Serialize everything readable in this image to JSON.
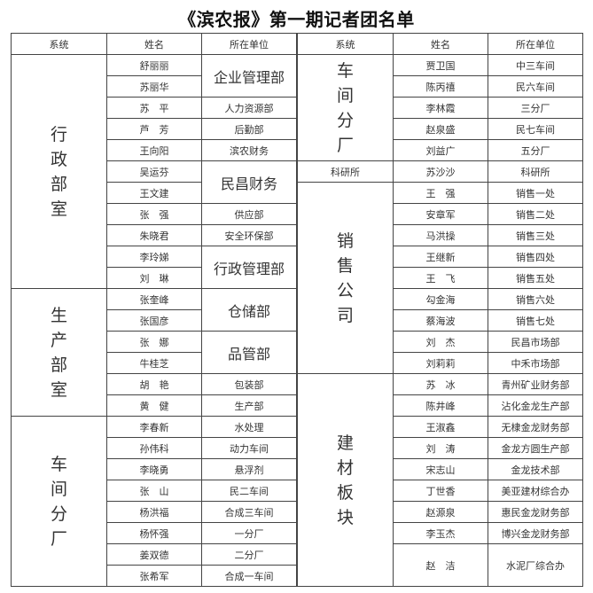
{
  "title": "《滨农报》第一期记者团名单",
  "header": [
    "系统",
    "姓名",
    "所在单位"
  ],
  "left": [
    {
      "system": "行政部室",
      "units": [
        {
          "unit": "企业管理部",
          "names": [
            "舒丽丽",
            "苏丽华"
          ]
        },
        {
          "unit": "人力资源部",
          "names": [
            "苏　平"
          ]
        },
        {
          "unit": "后勤部",
          "names": [
            "芦　芳"
          ]
        },
        {
          "unit": "滨农财务",
          "names": [
            "王向阳"
          ]
        },
        {
          "unit": "民昌财务",
          "names": [
            "吴运芬",
            "王文建"
          ]
        },
        {
          "unit": "供应部",
          "names": [
            "张　强"
          ]
        },
        {
          "unit": "安全环保部",
          "names": [
            "朱晓君"
          ]
        },
        {
          "unit": "行政管理部",
          "names": [
            "李玲娣",
            "刘　琳"
          ]
        }
      ]
    },
    {
      "system": "生产部室",
      "units": [
        {
          "unit": "仓储部",
          "names": [
            "张奎峰",
            "张国彦"
          ]
        },
        {
          "unit": "品管部",
          "names": [
            "张　娜",
            "牛桂芝"
          ]
        },
        {
          "unit": "包装部",
          "names": [
            "胡　艳"
          ]
        },
        {
          "unit": "生产部",
          "names": [
            "黄　健"
          ]
        }
      ]
    },
    {
      "system": "车间分厂",
      "units": [
        {
          "unit": "水处理",
          "names": [
            "李春新"
          ]
        },
        {
          "unit": "动力车间",
          "names": [
            "孙伟科"
          ]
        },
        {
          "unit": "悬浮剂",
          "names": [
            "李晓勇"
          ]
        },
        {
          "unit": "民二车间",
          "names": [
            "张　山"
          ]
        },
        {
          "unit": "合成三车间",
          "names": [
            "杨洪福"
          ]
        },
        {
          "unit": "一分厂",
          "names": [
            "杨怀强"
          ]
        },
        {
          "unit": "二分厂",
          "names": [
            "姜双德"
          ]
        },
        {
          "unit": "合成一车间",
          "names": [
            "张希军"
          ]
        }
      ]
    }
  ],
  "right": [
    {
      "system": "车间分厂",
      "units": [
        {
          "unit": "中三车间",
          "names": [
            "贾卫国"
          ]
        },
        {
          "unit": "民六车间",
          "names": [
            "陈丙禧"
          ]
        },
        {
          "unit": "三分厂",
          "names": [
            "李林霞"
          ]
        },
        {
          "unit": "民七车间",
          "names": [
            "赵泉盛"
          ]
        },
        {
          "unit": "五分厂",
          "names": [
            "刘益广"
          ]
        }
      ]
    },
    {
      "system": "科研所",
      "units": [
        {
          "unit": "科研所",
          "names": [
            "苏沙沙"
          ]
        }
      ]
    },
    {
      "system": "销售公司",
      "units": [
        {
          "unit": "销售一处",
          "names": [
            "王　强"
          ]
        },
        {
          "unit": "销售二处",
          "names": [
            "安章军"
          ]
        },
        {
          "unit": "销售三处",
          "names": [
            "马洪操"
          ]
        },
        {
          "unit": "销售四处",
          "names": [
            "王继新"
          ]
        },
        {
          "unit": "销售五处",
          "names": [
            "王　飞"
          ]
        },
        {
          "unit": "销售六处",
          "names": [
            "勾金海"
          ]
        },
        {
          "unit": "销售七处",
          "names": [
            "蔡海波"
          ]
        },
        {
          "unit": "民昌市场部",
          "names": [
            "刘　杰"
          ]
        },
        {
          "unit": "中禾市场部",
          "names": [
            "刘莉莉"
          ]
        }
      ]
    },
    {
      "system": "建材板块",
      "units": [
        {
          "unit": "青州矿业财务部",
          "names": [
            "苏　冰"
          ]
        },
        {
          "unit": "沾化金龙生产部",
          "names": [
            "陈井峰"
          ]
        },
        {
          "unit": "无棣金龙财务部",
          "names": [
            "王淑鑫"
          ]
        },
        {
          "unit": "金龙方圆生产部",
          "names": [
            "刘　涛"
          ]
        },
        {
          "unit": "金龙技术部",
          "names": [
            "宋志山"
          ]
        },
        {
          "unit": "美亚建材综合办",
          "names": [
            "丁世香"
          ]
        },
        {
          "unit": "惠民金龙财务部",
          "names": [
            "赵源泉"
          ]
        },
        {
          "unit": "博兴金龙财务部",
          "names": [
            "李玉杰"
          ]
        },
        {
          "unit": "水泥厂综合办",
          "names": [
            "赵　洁"
          ]
        }
      ]
    }
  ]
}
